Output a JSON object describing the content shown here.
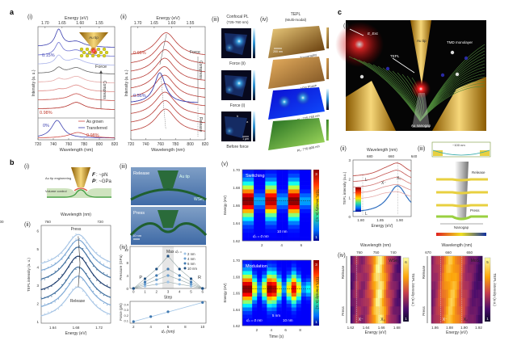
{
  "panels": {
    "a": "a",
    "b": "b",
    "c": "c"
  },
  "a": {
    "i": {
      "label": "(i)",
      "top_axis": "Energy (eV)",
      "top_ticks": [
        "1.70",
        "1.65",
        "1.60",
        "1.55"
      ],
      "x_ticks": [
        "720",
        "740",
        "760",
        "780",
        "800",
        "820"
      ],
      "xlabel": "Wavelength (nm)",
      "ylabel": "Intensity (a. u.)",
      "strain_top": "0.15%",
      "strain_bottom": "0.98%",
      "inset_tip": "Au tip",
      "force": "Force",
      "compress": "Compress",
      "lower_strain_left": "0%",
      "lower_strain_right": "0.98%",
      "legend": [
        "As grown",
        "Transferred"
      ]
    },
    "ii": {
      "label": "(ii)",
      "top_axis": "Energy (eV)",
      "top_ticks": [
        "1.70",
        "1.65",
        "1.60",
        "1.55"
      ],
      "x_ticks": [
        "720",
        "740",
        "760",
        "780",
        "800",
        "820"
      ],
      "xlabel": "Wavelength (nm)",
      "ylabel": "Intensity (a. u.)",
      "strain_red": "0.98%",
      "strain_blue": "0.56%",
      "force": "Force",
      "compress": "Compress",
      "release": "Release"
    },
    "iii": {
      "label": "(iii)",
      "title": "Confocal PL",
      "subtitle": "(725-760 nm)",
      "force_ii": "Force (ii)",
      "force_i": "Force (i)",
      "before": "Before force",
      "scale": "1 μm",
      "markers": [
        "b",
        "a"
      ]
    },
    "iv": {
      "label": "(iv)",
      "title": "TEPL",
      "subtitle": "(Multi-modal)",
      "maps": [
        "Topography",
        "AFM Phase",
        "PL: 725-760 nm",
        "PL: 770-805 nm"
      ],
      "scale": "200 nm"
    }
  },
  "b": {
    "i": {
      "label": "(i)",
      "tip_engineering": "Au tip engineering",
      "volume_control": "Volume control",
      "force": "F",
      "force_val": ": ~pN",
      "pressure": "P",
      "pressure_val": ": ~GPa"
    },
    "ii": {
      "label": "(ii)",
      "top_axis": "Wavelength (nm)",
      "top_ticks": [
        "800",
        "760",
        "720"
      ],
      "x_ticks": [
        "1.64",
        "1.68",
        "1.72"
      ],
      "y_ticks": [
        "1",
        "2",
        "3",
        "4",
        "5",
        "6"
      ],
      "xlabel": "Energy (eV)",
      "ylabel": "TEPL intensity (a. u.)",
      "press": "Press",
      "release": "Release"
    },
    "iii": {
      "label": "(iii)",
      "release": "Release",
      "press": "Press",
      "tip": "Au tip",
      "material": "WSe₂",
      "scale": "10 nm"
    },
    "iv": {
      "label": "(iv)",
      "max_label": "Max",
      "legend_title": "dₚ =",
      "p_label": "P",
      "r_label": "R"
    },
    "v": {
      "label": "(v)",
      "switching": "Switching",
      "modulation": "Modulation",
      "y_ticks": [
        "1.70",
        "1.68",
        "1.66",
        "1.64",
        "1.62"
      ],
      "ylabel": "Energy (eV)",
      "x_ticks_top": [
        "2",
        "4",
        "6"
      ],
      "x_ticks_bottom": [
        "2",
        "4",
        "6",
        "8"
      ],
      "xlabel": "Time (s)",
      "colorbar_label": "TEPL intensity (a. u.)",
      "colorbar_max": "3",
      "colorbar_min": "1",
      "sw_annot": [
        "10 nm",
        "dₚ = 0 nm"
      ],
      "mod_annot": [
        "dₚ = 0 nm",
        "5 nm",
        "10 nm"
      ]
    }
  },
  "c": {
    "i": {
      "label": "(i)",
      "excitation": "E_Exc",
      "tip": "Au tip",
      "tmd": "TMD monolayer",
      "tepl": "TEPL",
      "nanogap": "Au nanogap"
    },
    "ii": {
      "label": "(ii)",
      "top_axis": "Wavelength (nm)",
      "top_ticks": [
        "680",
        "660",
        "640"
      ],
      "x_ticks": [
        "1.80",
        "1.85",
        "1.90"
      ],
      "y_ticks": [
        "0",
        "1",
        "2",
        "3"
      ],
      "xlabel": "Energy (eV)",
      "ylabel": "TEPL intensity (a.u.)",
      "peaks": [
        "L",
        "X⁻",
        "X₀",
        "L"
      ]
    },
    "iii": {
      "label": "(iii)",
      "scale": "~100 nm",
      "release": "Release",
      "press": "Press",
      "nanogap": "Nanogap"
    },
    "iv": {
      "label": "(iv)",
      "left": {
        "top_axis": "Wavelength (nm)",
        "top_ticks": [
          "760",
          "750",
          "740"
        ],
        "x_ticks": [
          "1.62",
          "1.64",
          "1.66",
          "1.68"
        ],
        "xlabel": "Energy (eV)",
        "material": "WSe₂",
        "markers": [
          "X⁻",
          "X₀"
        ],
        "colorbar_max": "6",
        "colorbar_min": "1",
        "colorbar_label": "TEPL intensity (a.u.)"
      },
      "right": {
        "top_axis": "Wavelength (nm)",
        "top_ticks": [
          "670",
          "660",
          "650"
        ],
        "x_ticks": [
          "1.86",
          "1.88",
          "1.90",
          "1.92"
        ],
        "xlabel": "Energy (eV)",
        "material": "MoS₂",
        "markers": [
          "X⁻",
          "X₀"
        ],
        "colorbar_max": "5",
        "colorbar_min": "1",
        "colorbar_label": "TEPL intensity (a.u.)"
      },
      "release": "Release",
      "press": "Press"
    }
  },
  "colors": {
    "red": "#c0392b",
    "blue": "#3b3fb0",
    "steel_blue": "#2e5f8a",
    "gold": "#d9a520",
    "green": "#2e7d32"
  },
  "chart_data": [
    {
      "type": "line",
      "panel": "b(iv) top",
      "xlabel": "Step",
      "ylabel": "Pressure (GPa)",
      "x": [
        0,
        1,
        2,
        3,
        4,
        5,
        6
      ],
      "x_ticks": [
        "0",
        "1",
        "2",
        "3",
        "4",
        "5",
        "6"
      ],
      "y_ticks": [
        "0",
        "4",
        "8",
        "12"
      ],
      "ylim": [
        0,
        13
      ],
      "series": [
        {
          "name": "2 nm",
          "values": [
            0,
            0.7,
            1.3,
            2,
            1.3,
            0.7,
            0
          ]
        },
        {
          "name": "4 nm",
          "values": [
            0,
            1.3,
            2.7,
            4,
            2.7,
            1.3,
            0
          ]
        },
        {
          "name": "6 nm",
          "values": [
            0,
            2,
            4,
            6,
            4,
            2,
            0
          ]
        },
        {
          "name": "10 nm",
          "values": [
            0,
            3,
            6,
            10,
            6,
            3,
            0
          ]
        }
      ]
    },
    {
      "type": "scatter",
      "panel": "b(iv) bottom",
      "xlabel": "dₚ (nm)",
      "ylabel": "Force (pN)",
      "x": [
        2,
        4,
        6,
        10
      ],
      "values": [
        0.08,
        0.17,
        0.26,
        0.43
      ],
      "x_ticks": [
        "2",
        "4",
        "6",
        "8",
        "10"
      ],
      "y_ticks": [
        "0.1",
        "0.2",
        "0.3",
        "0.4"
      ],
      "xlim": [
        2,
        10
      ],
      "ylim": [
        0.05,
        0.45
      ]
    }
  ]
}
